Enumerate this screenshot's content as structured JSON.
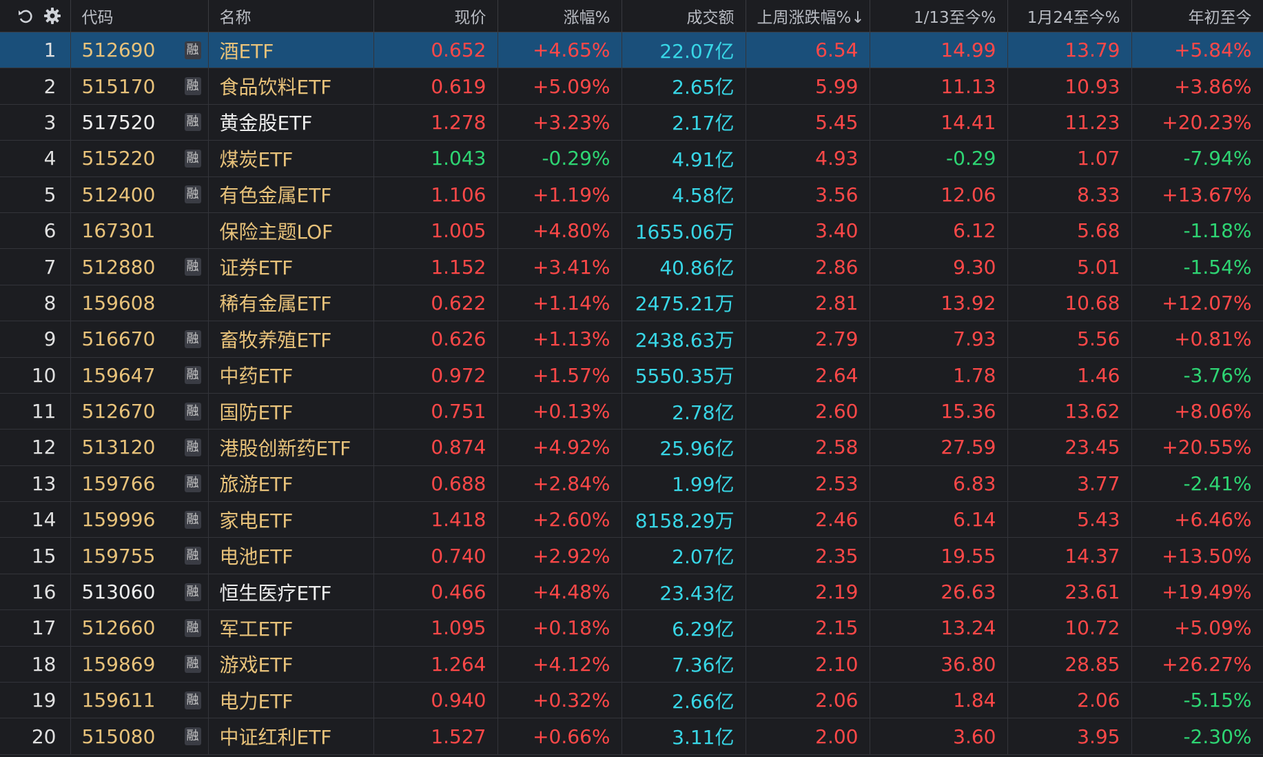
{
  "header": {
    "code": "代码",
    "name": "名称",
    "price": "现价",
    "change": "涨幅%",
    "volume": "成交额",
    "last_week": "上周涨跌幅%↓",
    "since_0113": "1/13至今%",
    "since_0124": "1月24至今%",
    "ytd": "年初至今"
  },
  "icons": {
    "undo": "undo-icon",
    "settings": "gear-icon"
  },
  "colors": {
    "up": "#ff4848",
    "down": "#2ed573",
    "volume": "#38d6e6",
    "selected_row": "#1a4f7a"
  },
  "rows": [
    {
      "idx": "1",
      "code": "512690",
      "rong": "融",
      "name": "酒ETF",
      "price": "0.652",
      "change": "+4.65%",
      "volume": "22.07亿",
      "last_week": "6.54",
      "since_0113": "14.99",
      "since_0124": "13.79",
      "ytd": "+5.84%"
    },
    {
      "idx": "2",
      "code": "515170",
      "rong": "融",
      "name": "食品饮料ETF",
      "price": "0.619",
      "change": "+5.09%",
      "volume": "2.65亿",
      "last_week": "5.99",
      "since_0113": "11.13",
      "since_0124": "10.93",
      "ytd": "+3.86%"
    },
    {
      "idx": "3",
      "code": "517520",
      "rong": "融",
      "name": "黄金股ETF",
      "price": "1.278",
      "change": "+3.23%",
      "volume": "2.17亿",
      "last_week": "5.45",
      "since_0113": "14.41",
      "since_0124": "11.23",
      "ytd": "+20.23%"
    },
    {
      "idx": "4",
      "code": "515220",
      "rong": "融",
      "name": "煤炭ETF",
      "price": "1.043",
      "change": "-0.29%",
      "volume": "4.91亿",
      "last_week": "4.93",
      "since_0113": "-0.29",
      "since_0124": "1.07",
      "ytd": "-7.94%"
    },
    {
      "idx": "5",
      "code": "512400",
      "rong": "融",
      "name": "有色金属ETF",
      "price": "1.106",
      "change": "+1.19%",
      "volume": "4.58亿",
      "last_week": "3.56",
      "since_0113": "12.06",
      "since_0124": "8.33",
      "ytd": "+13.67%"
    },
    {
      "idx": "6",
      "code": "167301",
      "rong": "",
      "name": "保险主题LOF",
      "price": "1.005",
      "change": "+4.80%",
      "volume": "1655.06万",
      "last_week": "3.40",
      "since_0113": "6.12",
      "since_0124": "5.68",
      "ytd": "-1.18%"
    },
    {
      "idx": "7",
      "code": "512880",
      "rong": "融",
      "name": "证券ETF",
      "price": "1.152",
      "change": "+3.41%",
      "volume": "40.86亿",
      "last_week": "2.86",
      "since_0113": "9.30",
      "since_0124": "5.01",
      "ytd": "-1.54%"
    },
    {
      "idx": "8",
      "code": "159608",
      "rong": "",
      "name": "稀有金属ETF",
      "price": "0.622",
      "change": "+1.14%",
      "volume": "2475.21万",
      "last_week": "2.81",
      "since_0113": "13.92",
      "since_0124": "10.68",
      "ytd": "+12.07%"
    },
    {
      "idx": "9",
      "code": "516670",
      "rong": "融",
      "name": "畜牧养殖ETF",
      "price": "0.626",
      "change": "+1.13%",
      "volume": "2438.63万",
      "last_week": "2.79",
      "since_0113": "7.93",
      "since_0124": "5.56",
      "ytd": "+0.81%"
    },
    {
      "idx": "10",
      "code": "159647",
      "rong": "融",
      "name": "中药ETF",
      "price": "0.972",
      "change": "+1.57%",
      "volume": "5550.35万",
      "last_week": "2.64",
      "since_0113": "1.78",
      "since_0124": "1.46",
      "ytd": "-3.76%"
    },
    {
      "idx": "11",
      "code": "512670",
      "rong": "融",
      "name": "国防ETF",
      "price": "0.751",
      "change": "+0.13%",
      "volume": "2.78亿",
      "last_week": "2.60",
      "since_0113": "15.36",
      "since_0124": "13.62",
      "ytd": "+8.06%"
    },
    {
      "idx": "12",
      "code": "513120",
      "rong": "融",
      "name": "港股创新药ETF",
      "price": "0.874",
      "change": "+4.92%",
      "volume": "25.96亿",
      "last_week": "2.58",
      "since_0113": "27.59",
      "since_0124": "23.45",
      "ytd": "+20.55%"
    },
    {
      "idx": "13",
      "code": "159766",
      "rong": "融",
      "name": "旅游ETF",
      "price": "0.688",
      "change": "+2.84%",
      "volume": "1.99亿",
      "last_week": "2.53",
      "since_0113": "6.83",
      "since_0124": "3.77",
      "ytd": "-2.41%"
    },
    {
      "idx": "14",
      "code": "159996",
      "rong": "融",
      "name": "家电ETF",
      "price": "1.418",
      "change": "+2.60%",
      "volume": "8158.29万",
      "last_week": "2.46",
      "since_0113": "6.14",
      "since_0124": "5.43",
      "ytd": "+6.46%"
    },
    {
      "idx": "15",
      "code": "159755",
      "rong": "融",
      "name": "电池ETF",
      "price": "0.740",
      "change": "+2.92%",
      "volume": "2.07亿",
      "last_week": "2.35",
      "since_0113": "19.55",
      "since_0124": "14.37",
      "ytd": "+13.50%"
    },
    {
      "idx": "16",
      "code": "513060",
      "rong": "融",
      "name": "恒生医疗ETF",
      "price": "0.466",
      "change": "+4.48%",
      "volume": "23.43亿",
      "last_week": "2.19",
      "since_0113": "26.63",
      "since_0124": "23.61",
      "ytd": "+19.49%"
    },
    {
      "idx": "17",
      "code": "512660",
      "rong": "融",
      "name": "军工ETF",
      "price": "1.095",
      "change": "+0.18%",
      "volume": "6.29亿",
      "last_week": "2.15",
      "since_0113": "13.24",
      "since_0124": "10.72",
      "ytd": "+5.09%"
    },
    {
      "idx": "18",
      "code": "159869",
      "rong": "融",
      "name": "游戏ETF",
      "price": "1.264",
      "change": "+4.12%",
      "volume": "7.36亿",
      "last_week": "2.10",
      "since_0113": "36.80",
      "since_0124": "28.85",
      "ytd": "+26.27%"
    },
    {
      "idx": "19",
      "code": "159611",
      "rong": "融",
      "name": "电力ETF",
      "price": "0.940",
      "change": "+0.32%",
      "volume": "2.66亿",
      "last_week": "2.06",
      "since_0113": "1.84",
      "since_0124": "2.06",
      "ytd": "-5.15%"
    },
    {
      "idx": "20",
      "code": "515080",
      "rong": "融",
      "name": "中证红利ETF",
      "price": "1.527",
      "change": "+0.66%",
      "volume": "3.11亿",
      "last_week": "2.00",
      "since_0113": "3.60",
      "since_0124": "3.95",
      "ytd": "-2.30%"
    }
  ]
}
